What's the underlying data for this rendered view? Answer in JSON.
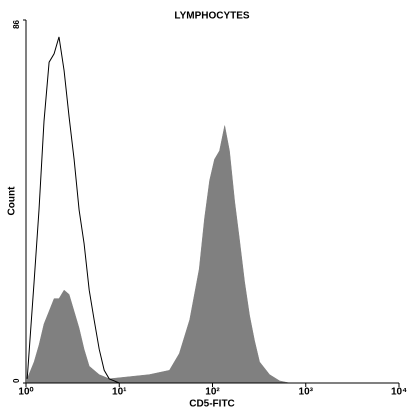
{
  "chart_data": {
    "type": "histogram-overlay",
    "title": "LYMPHOCYTES",
    "xlabel": "CD5-FITC",
    "ylabel": "Count",
    "xscale": "log",
    "xlim": [
      1,
      10000
    ],
    "xticks": [
      {
        "value": 1,
        "label": "10⁰"
      },
      {
        "value": 10,
        "label": "10¹"
      },
      {
        "value": 100,
        "label": "10²"
      },
      {
        "value": 1000,
        "label": "10³"
      },
      {
        "value": 10000,
        "label": "10⁴"
      }
    ],
    "ylim": [
      0,
      86
    ],
    "yticks": [
      0,
      86
    ],
    "series": [
      {
        "style": "filled",
        "color": "#808080",
        "x": [
          1.03,
          1.22,
          1.38,
          1.56,
          1.77,
          2.0,
          2.26,
          2.56,
          2.9,
          3.28,
          3.71,
          4.2,
          4.76,
          5.38,
          6.1,
          7.8,
          12.8,
          21,
          34.5,
          44,
          57,
          72,
          82,
          93,
          105,
          119,
          135,
          152,
          173,
          195,
          221,
          250,
          283,
          320,
          410,
          525,
          673
        ],
        "values": [
          1,
          5,
          9,
          14,
          17,
          20,
          20,
          22,
          21,
          17,
          13,
          8,
          4,
          3,
          2,
          1,
          1.5,
          2,
          3,
          7,
          15,
          27,
          39,
          48,
          53,
          55,
          61,
          55,
          43,
          34,
          24,
          16,
          10,
          5,
          2,
          0.5,
          0
        ]
      },
      {
        "style": "outline",
        "color": "#000000",
        "x": [
          1.03,
          1.22,
          1.38,
          1.56,
          1.77,
          2.0,
          2.26,
          2.56,
          2.9,
          3.28,
          3.71,
          4.2,
          4.76,
          5.38,
          6.1,
          6.9,
          7.8,
          10
        ],
        "values": [
          1,
          24,
          41,
          62,
          76,
          78,
          82,
          74,
          63,
          53,
          41,
          33,
          22,
          15,
          8,
          3,
          1,
          0
        ]
      }
    ]
  }
}
